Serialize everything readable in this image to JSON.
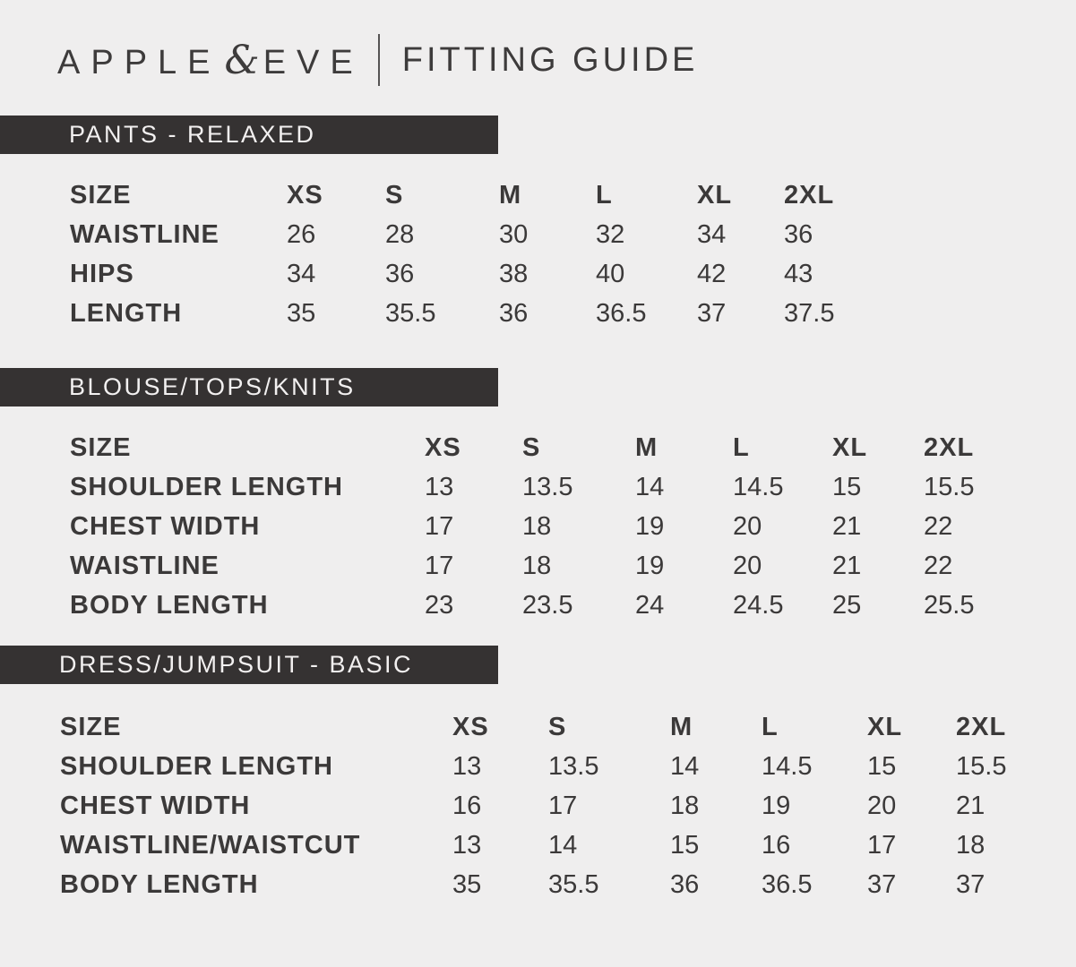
{
  "page": {
    "background_color": "#efeeee",
    "text_color": "#3b3939",
    "banner_background_color": "#353232",
    "banner_text_color": "#f2f0f0"
  },
  "header": {
    "brand_left": "APPLE",
    "ampersand": "&",
    "brand_right": "EVE",
    "title": "FITTING GUIDE"
  },
  "sections": [
    {
      "banner": "PANTS - RELAXED",
      "table": {
        "header": [
          "SIZE",
          "XS",
          "S",
          "M",
          "L",
          "XL",
          "2XL"
        ],
        "rows": [
          [
            "WAISTLINE",
            "26",
            "28",
            "30",
            "32",
            "34",
            "36"
          ],
          [
            "HIPS",
            "34",
            "36",
            "38",
            "40",
            "42",
            "43"
          ],
          [
            "LENGTH",
            "35",
            "35.5",
            "36",
            "36.5",
            "37",
            "37.5"
          ]
        ]
      }
    },
    {
      "banner": "BLOUSE/TOPS/KNITS",
      "table": {
        "header": [
          "SIZE",
          "XS",
          "S",
          "M",
          "L",
          "XL",
          "2XL"
        ],
        "rows": [
          [
            "SHOULDER LENGTH",
            "13",
            "13.5",
            "14",
            "14.5",
            "15",
            "15.5"
          ],
          [
            "CHEST WIDTH",
            "17",
            "18",
            "19",
            "20",
            "21",
            "22"
          ],
          [
            "WAISTLINE",
            "17",
            "18",
            "19",
            "20",
            "21",
            "22"
          ],
          [
            "BODY LENGTH",
            "23",
            "23.5",
            "24",
            "24.5",
            "25",
            "25.5"
          ]
        ]
      }
    },
    {
      "banner": "DRESS/JUMPSUIT - BASIC",
      "table": {
        "header": [
          "SIZE",
          "XS",
          "S",
          "M",
          "L",
          "XL",
          "2XL"
        ],
        "rows": [
          [
            "SHOULDER LENGTH",
            "13",
            "13.5",
            "14",
            "14.5",
            "15",
            "15.5"
          ],
          [
            "CHEST WIDTH",
            "16",
            "17",
            "18",
            "19",
            "20",
            "21"
          ],
          [
            "WAISTLINE/WAISTCUT",
            "13",
            "14",
            "15",
            "16",
            "17",
            "18"
          ],
          [
            "BODY LENGTH",
            "35",
            "35.5",
            "36",
            "36.5",
            "37",
            "37"
          ]
        ]
      }
    }
  ]
}
